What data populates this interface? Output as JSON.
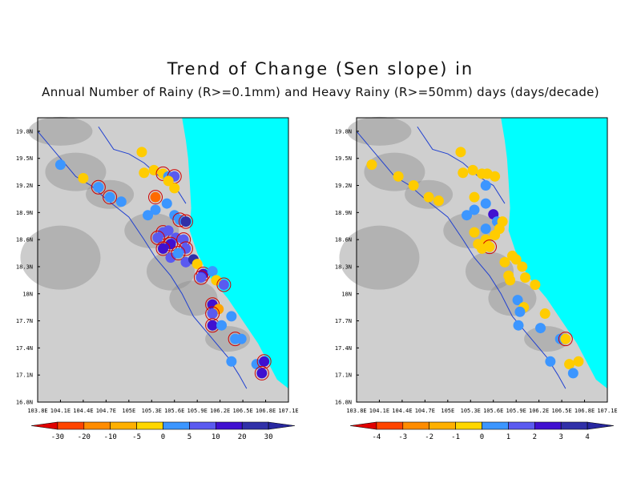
{
  "title_line1": "Trend of Change (Sen slope) in",
  "title_line2": "Annual Number of Rainy (R>=0.1mm) and Heavy Rainy (R>=50mm) days (days/decade)",
  "lat_labels": [
    "16.8N",
    "17.1N",
    "17.4N",
    "17.7N",
    "18N",
    "18.3N",
    "18.6N",
    "18.9N",
    "19.2N",
    "19.5N",
    "19.8N"
  ],
  "lon_labels": [
    "103.8E",
    "104.1E",
    "104.4E",
    "104.7E",
    "105E",
    "105.3E",
    "105.6E",
    "105.9E",
    "106.2E",
    "106.5E",
    "106.8E",
    "107.1E"
  ],
  "colors": {
    "sea": "#00ffff",
    "station_colors": [
      "#e00000",
      "#ff6a00",
      "#ffa500",
      "#ffcc00",
      "#3c96ff",
      "#5a5af0",
      "#4010d0",
      "#3030a8"
    ]
  },
  "panels": [
    {
      "id": "rainy",
      "legend": {
        "ticks": [
          "-30",
          "-20",
          "-10",
          "-5",
          "0",
          "5",
          "10",
          "20",
          "30"
        ],
        "colors": [
          "#e00000",
          "#ff4500",
          "#ff8c00",
          "#ffb000",
          "#ffd700",
          "#3c96ff",
          "#5a5af0",
          "#4010d0",
          "#3030a8",
          "#2828a0"
        ]
      },
      "stations": [
        [
          104.1,
          19.43,
          4,
          0
        ],
        [
          104.4,
          19.28,
          3,
          0
        ],
        [
          104.6,
          19.18,
          4,
          1
        ],
        [
          104.75,
          19.07,
          4,
          1
        ],
        [
          104.9,
          19.02,
          4,
          0
        ],
        [
          105.17,
          19.57,
          3,
          0
        ],
        [
          105.2,
          19.34,
          3,
          0
        ],
        [
          105.33,
          19.37,
          3,
          0
        ],
        [
          105.45,
          19.33,
          3,
          1
        ],
        [
          105.52,
          19.3,
          4,
          0
        ],
        [
          105.6,
          19.3,
          5,
          1
        ],
        [
          105.52,
          19.25,
          3,
          0
        ],
        [
          105.6,
          19.17,
          3,
          0
        ],
        [
          105.35,
          19.07,
          1,
          1
        ],
        [
          105.25,
          18.87,
          4,
          0
        ],
        [
          105.35,
          18.93,
          4,
          0
        ],
        [
          105.5,
          19.0,
          4,
          0
        ],
        [
          105.6,
          18.87,
          4,
          0
        ],
        [
          105.67,
          18.82,
          4,
          1
        ],
        [
          105.75,
          18.8,
          7,
          1
        ],
        [
          105.45,
          18.68,
          5,
          1
        ],
        [
          105.38,
          18.62,
          5,
          1
        ],
        [
          105.52,
          18.7,
          5,
          0
        ],
        [
          105.62,
          18.62,
          5,
          0
        ],
        [
          105.55,
          18.55,
          6,
          1
        ],
        [
          105.72,
          18.6,
          5,
          1
        ],
        [
          105.75,
          18.5,
          5,
          1
        ],
        [
          105.45,
          18.5,
          6,
          1
        ],
        [
          105.55,
          18.4,
          5,
          0
        ],
        [
          105.65,
          18.45,
          4,
          1
        ],
        [
          105.75,
          18.35,
          5,
          0
        ],
        [
          105.85,
          18.38,
          7,
          0
        ],
        [
          105.9,
          18.33,
          3,
          0
        ],
        [
          105.98,
          18.22,
          6,
          1
        ],
        [
          105.95,
          18.18,
          5,
          1
        ],
        [
          106.1,
          18.25,
          4,
          0
        ],
        [
          106.15,
          18.15,
          3,
          0
        ],
        [
          106.25,
          18.1,
          5,
          1
        ],
        [
          106.1,
          17.88,
          6,
          1
        ],
        [
          106.18,
          17.83,
          2,
          0
        ],
        [
          106.1,
          17.78,
          5,
          1
        ],
        [
          106.1,
          17.65,
          6,
          1
        ],
        [
          106.22,
          17.65,
          4,
          0
        ],
        [
          106.35,
          17.75,
          4,
          0
        ],
        [
          106.4,
          17.5,
          4,
          1
        ],
        [
          106.48,
          17.5,
          4,
          0
        ],
        [
          106.35,
          17.25,
          4,
          0
        ],
        [
          106.68,
          17.22,
          4,
          0
        ],
        [
          106.78,
          17.25,
          6,
          1
        ],
        [
          106.75,
          17.12,
          6,
          1
        ]
      ]
    },
    {
      "id": "heavy",
      "legend": {
        "ticks": [
          "-4",
          "-3",
          "-2",
          "-1",
          "0",
          "1",
          "2",
          "3",
          "4"
        ],
        "colors": [
          "#e00000",
          "#ff4500",
          "#ff8c00",
          "#ffb000",
          "#ffd700",
          "#3c96ff",
          "#5a5af0",
          "#4010d0",
          "#3030a8",
          "#2828a0"
        ]
      },
      "stations": [
        [
          104.0,
          19.43,
          3,
          0
        ],
        [
          104.35,
          19.3,
          3,
          0
        ],
        [
          104.55,
          19.2,
          3,
          0
        ],
        [
          104.75,
          19.07,
          3,
          0
        ],
        [
          104.88,
          19.03,
          3,
          0
        ],
        [
          105.17,
          19.57,
          3,
          0
        ],
        [
          105.2,
          19.34,
          3,
          0
        ],
        [
          105.33,
          19.37,
          3,
          0
        ],
        [
          105.45,
          19.33,
          3,
          0
        ],
        [
          105.52,
          19.33,
          3,
          0
        ],
        [
          105.62,
          19.3,
          3,
          0
        ],
        [
          105.5,
          19.2,
          4,
          0
        ],
        [
          105.35,
          19.07,
          3,
          0
        ],
        [
          105.5,
          19.0,
          4,
          0
        ],
        [
          105.25,
          18.87,
          4,
          0
        ],
        [
          105.35,
          18.93,
          4,
          0
        ],
        [
          105.6,
          18.88,
          6,
          0
        ],
        [
          105.65,
          18.8,
          4,
          0
        ],
        [
          105.72,
          18.8,
          3,
          0
        ],
        [
          105.68,
          18.72,
          3,
          0
        ],
        [
          105.62,
          18.65,
          3,
          0
        ],
        [
          105.35,
          18.68,
          3,
          0
        ],
        [
          105.4,
          18.55,
          3,
          0
        ],
        [
          105.5,
          18.6,
          3,
          0
        ],
        [
          105.55,
          18.52,
          3,
          1
        ],
        [
          105.45,
          18.5,
          3,
          0
        ],
        [
          105.5,
          18.72,
          4,
          0
        ],
        [
          105.85,
          18.42,
          3,
          0
        ],
        [
          105.9,
          18.38,
          3,
          0
        ],
        [
          105.75,
          18.35,
          3,
          0
        ],
        [
          105.8,
          18.2,
          3,
          0
        ],
        [
          105.82,
          18.15,
          3,
          0
        ],
        [
          105.98,
          18.3,
          3,
          0
        ],
        [
          106.02,
          18.18,
          3,
          0
        ],
        [
          106.15,
          18.1,
          3,
          0
        ],
        [
          105.92,
          17.93,
          4,
          0
        ],
        [
          106.0,
          17.85,
          3,
          0
        ],
        [
          105.95,
          17.8,
          4,
          0
        ],
        [
          105.93,
          17.65,
          4,
          0
        ],
        [
          106.28,
          17.78,
          3,
          0
        ],
        [
          106.22,
          17.62,
          4,
          0
        ],
        [
          106.48,
          17.5,
          4,
          0
        ],
        [
          106.55,
          17.5,
          3,
          1
        ],
        [
          106.35,
          17.25,
          4,
          0
        ],
        [
          106.6,
          17.22,
          3,
          0
        ],
        [
          106.72,
          17.25,
          3,
          0
        ],
        [
          106.65,
          17.12,
          4,
          0
        ]
      ]
    }
  ]
}
